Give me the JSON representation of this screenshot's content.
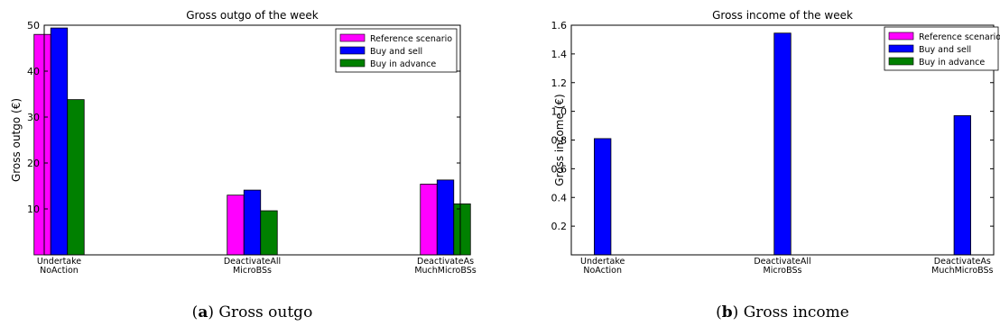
{
  "chart_data": [
    {
      "type": "bar",
      "title": "Gross outgo of the week",
      "ylabel": "Gross outgo (€)",
      "xlabel": "",
      "ylim": [
        0,
        50
      ],
      "yticks": [
        10,
        20,
        30,
        40,
        50
      ],
      "categories": [
        [
          "Undertake",
          "NoAction"
        ],
        [
          "DeactivateAll",
          "MicroBSs"
        ],
        [
          "DeactivateAs",
          "MuchMicroBSs"
        ]
      ],
      "series": [
        {
          "name": "Reference scenario",
          "color": "#ff00ff",
          "values": [
            48.0,
            13.0,
            15.4
          ]
        },
        {
          "name": "Buy and sell",
          "color": "#0000ff",
          "values": [
            49.4,
            14.1,
            16.3
          ]
        },
        {
          "name": "Buy in advance",
          "color": "#008000",
          "values": [
            33.8,
            9.6,
            11.1
          ]
        }
      ],
      "legend_position": "top-right",
      "grid": false,
      "caption_letter": "a",
      "caption_text": "Gross outgo"
    },
    {
      "type": "bar",
      "title": "Gross income of the week",
      "ylabel": "Gross income (€)",
      "xlabel": "",
      "ylim": [
        0,
        1.6
      ],
      "yticks": [
        "0.2",
        "0.4",
        "0.6",
        "0.8",
        "1.0",
        "1.2",
        "1.4",
        "1.6"
      ],
      "categories": [
        [
          "Undertake",
          "NoAction"
        ],
        [
          "DeactivateAll",
          "MicroBSs"
        ],
        [
          "DeactivateAs",
          "MuchMicroBSs"
        ]
      ],
      "series": [
        {
          "name": "Reference scenario",
          "color": "#ff00ff",
          "values": [
            0,
            0,
            0
          ]
        },
        {
          "name": "Buy and sell",
          "color": "#0000ff",
          "values": [
            0.81,
            1.545,
            0.97
          ]
        },
        {
          "name": "Buy in advance",
          "color": "#008000",
          "values": [
            0,
            0,
            0
          ]
        }
      ],
      "legend_position": "top-right",
      "grid": false,
      "caption_letter": "b",
      "caption_text": "Gross income"
    }
  ]
}
